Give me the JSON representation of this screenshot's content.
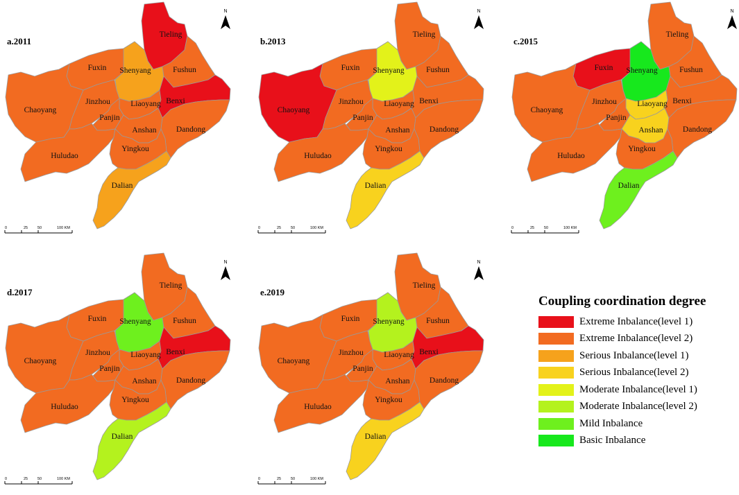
{
  "colors": {
    "extreme1": "#e8101a",
    "extreme2": "#f26b21",
    "serious1": "#f6a21c",
    "serious2": "#f8d21e",
    "moderate1": "#e3f21a",
    "moderate2": "#b4f21e",
    "mild": "#6ef01e",
    "basic": "#17e81d"
  },
  "north_label": "N",
  "scale": {
    "ticks": [
      "0",
      "25",
      "50",
      "100 KM"
    ]
  },
  "cities": [
    "Tieling",
    "Fuxin",
    "Shenyang",
    "Fushun",
    "Chaoyang",
    "Jinzhou",
    "Liaoyang",
    "Benxi",
    "Panjin",
    "Anshan",
    "Dandong",
    "Huludao",
    "Yingkou",
    "Dalian"
  ],
  "maps": [
    {
      "title": "a.2011",
      "levels": {
        "Tieling": "extreme1",
        "Fuxin": "extreme2",
        "Shenyang": "serious1",
        "Fushun": "extreme2",
        "Chaoyang": "extreme2",
        "Jinzhou": "extreme2",
        "Liaoyang": "extreme2",
        "Benxi": "extreme1",
        "Panjin": "extreme2",
        "Anshan": "extreme2",
        "Dandong": "extreme2",
        "Huludao": "extreme2",
        "Yingkou": "extreme2",
        "Dalian": "serious1"
      }
    },
    {
      "title": "b.2013",
      "levels": {
        "Tieling": "extreme2",
        "Fuxin": "extreme2",
        "Shenyang": "moderate1",
        "Fushun": "extreme2",
        "Chaoyang": "extreme1",
        "Jinzhou": "extreme2",
        "Liaoyang": "extreme2",
        "Benxi": "extreme2",
        "Panjin": "extreme2",
        "Anshan": "extreme2",
        "Dandong": "extreme2",
        "Huludao": "extreme2",
        "Yingkou": "extreme2",
        "Dalian": "serious2"
      }
    },
    {
      "title": "c.2015",
      "levels": {
        "Tieling": "extreme2",
        "Fuxin": "extreme1",
        "Shenyang": "basic",
        "Fushun": "extreme2",
        "Chaoyang": "extreme2",
        "Jinzhou": "extreme2",
        "Liaoyang": "serious2",
        "Benxi": "extreme2",
        "Panjin": "extreme2",
        "Anshan": "serious2",
        "Dandong": "extreme2",
        "Huludao": "extreme2",
        "Yingkou": "extreme2",
        "Dalian": "mild"
      }
    },
    {
      "title": "d.2017",
      "levels": {
        "Tieling": "extreme2",
        "Fuxin": "extreme2",
        "Shenyang": "mild",
        "Fushun": "extreme2",
        "Chaoyang": "extreme2",
        "Jinzhou": "extreme2",
        "Liaoyang": "extreme2",
        "Benxi": "extreme1",
        "Panjin": "extreme2",
        "Anshan": "extreme2",
        "Dandong": "extreme2",
        "Huludao": "extreme2",
        "Yingkou": "extreme2",
        "Dalian": "moderate2"
      }
    },
    {
      "title": "e.2019",
      "levels": {
        "Tieling": "extreme2",
        "Fuxin": "extreme2",
        "Shenyang": "moderate2",
        "Fushun": "extreme2",
        "Chaoyang": "extreme2",
        "Jinzhou": "extreme2",
        "Liaoyang": "extreme2",
        "Benxi": "extreme1",
        "Panjin": "extreme2",
        "Anshan": "extreme2",
        "Dandong": "extreme2",
        "Huludao": "extreme2",
        "Yingkou": "extreme2",
        "Dalian": "serious2"
      }
    }
  ],
  "legend": {
    "title": "Coupling coordination degree",
    "items": [
      {
        "label": "Extreme Inbalance(level 1)",
        "color_key": "extreme1"
      },
      {
        "label": "Extreme Inbalance(level 2)",
        "color_key": "extreme2"
      },
      {
        "label": "Serious Inbalance(level 1)",
        "color_key": "serious1"
      },
      {
        "label": "Serious Inbalance(level 2)",
        "color_key": "serious2"
      },
      {
        "label": "Moderate Inbalance(level 1)",
        "color_key": "moderate1"
      },
      {
        "label": "Moderate Inbalance(level 2)",
        "color_key": "moderate2"
      },
      {
        "label": "Mild Inbalance",
        "color_key": "mild"
      },
      {
        "label": "Basic Inbalance",
        "color_key": "basic"
      }
    ]
  }
}
